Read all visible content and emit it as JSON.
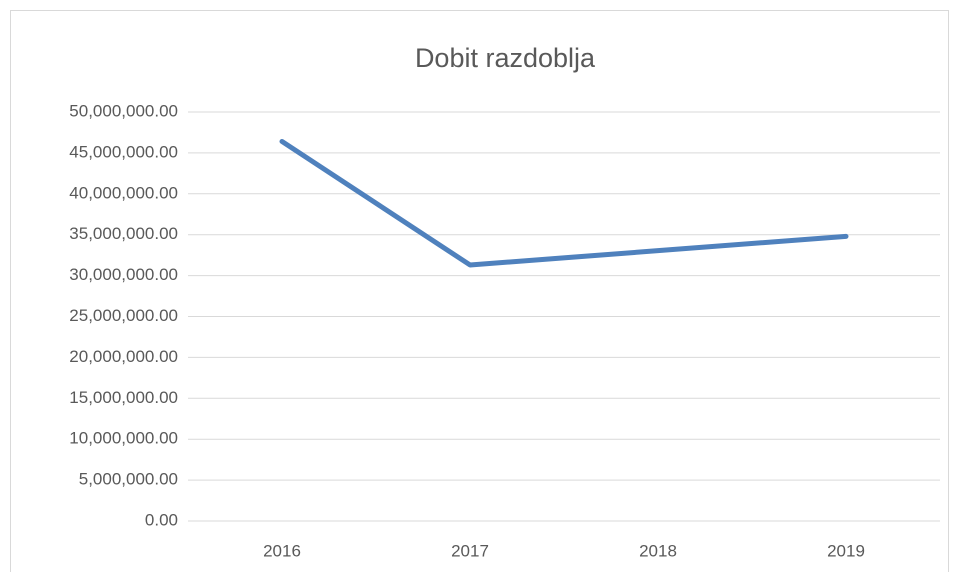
{
  "chart_data": {
    "type": "line",
    "title": "Dobit razdoblja",
    "categories": [
      "2016",
      "2017",
      "2018",
      "2019"
    ],
    "series": [
      {
        "name": "Dobit razdoblja",
        "color": "#4f81bd",
        "values": [
          46400000,
          31300000,
          33050000,
          34800000
        ]
      }
    ],
    "ylim": [
      0,
      50000000
    ],
    "yticks": [
      {
        "value": 0,
        "label": "0.00"
      },
      {
        "value": 5000000,
        "label": "5,000,000.00"
      },
      {
        "value": 10000000,
        "label": "10,000,000.00"
      },
      {
        "value": 15000000,
        "label": "15,000,000.00"
      },
      {
        "value": 20000000,
        "label": "20,000,000.00"
      },
      {
        "value": 25000000,
        "label": "25,000,000.00"
      },
      {
        "value": 30000000,
        "label": "30,000,000.00"
      },
      {
        "value": 35000000,
        "label": "35,000,000.00"
      },
      {
        "value": 40000000,
        "label": "40,000,000.00"
      },
      {
        "value": 45000000,
        "label": "45,000,000.00"
      },
      {
        "value": 50000000,
        "label": "50,000,000.00"
      }
    ],
    "grid": true
  }
}
